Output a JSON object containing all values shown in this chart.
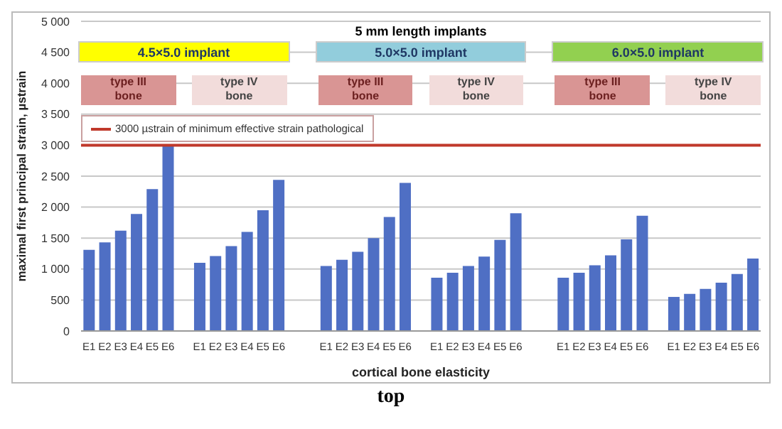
{
  "chart_data": {
    "type": "bar",
    "ylabel": "maximal first principal strain, µstrain",
    "xlabel": "cortical bone elasticity",
    "categories": [
      "E1",
      "E2",
      "E3",
      "E4",
      "E5",
      "E6",
      null,
      "E1",
      "E2",
      "E3",
      "E4",
      "E5",
      "E6",
      null,
      null,
      "E1",
      "E2",
      "E3",
      "E4",
      "E5",
      "E6",
      null,
      "E1",
      "E2",
      "E3",
      "E4",
      "E5",
      "E6",
      null,
      null,
      "E1",
      "E2",
      "E3",
      "E4",
      "E5",
      "E6",
      null,
      "E1",
      "E2",
      "E3",
      "E4",
      "E5",
      "E6"
    ],
    "values": [
      1310,
      1430,
      1620,
      1890,
      2290,
      3000,
      null,
      1100,
      1210,
      1370,
      1600,
      1950,
      2440,
      null,
      null,
      1050,
      1150,
      1280,
      1500,
      1840,
      2390,
      null,
      860,
      940,
      1050,
      1200,
      1470,
      1900,
      null,
      null,
      860,
      940,
      1060,
      1220,
      1480,
      1860,
      null,
      550,
      600,
      680,
      780,
      920,
      1170
    ],
    "color": "#4f6fc4",
    "ylim": [
      0,
      5000
    ],
    "yticks": [
      {
        "value": 0,
        "label": "0"
      },
      {
        "value": 500,
        "label": "500"
      },
      {
        "value": 1000,
        "label": "1 000"
      },
      {
        "value": 1500,
        "label": "1 500"
      },
      {
        "value": 2000,
        "label": "2 000"
      },
      {
        "value": 2500,
        "label": "2 500"
      },
      {
        "value": 3000,
        "label": "3 000"
      },
      {
        "value": 3500,
        "label": "3 500"
      },
      {
        "value": 4000,
        "label": "4 000"
      },
      {
        "value": 4500,
        "label": "4 500"
      },
      {
        "value": 5000,
        "label": "5 000"
      }
    ],
    "grid": "y",
    "ref_lines": [
      {
        "axis": "y",
        "value": 3000,
        "label": "3000 µstrain of minimum effective strain pathological",
        "color": "#c0392b"
      }
    ],
    "annotations": [
      "5 mm length implants",
      "4.5×5.0 implant",
      "5.0×5.0 implant",
      "6.0×5.0 implant",
      "type III bone",
      "type IV bone",
      "type III bone",
      "type IV bone",
      "type III bone",
      "type IV bone",
      "top"
    ]
  }
}
